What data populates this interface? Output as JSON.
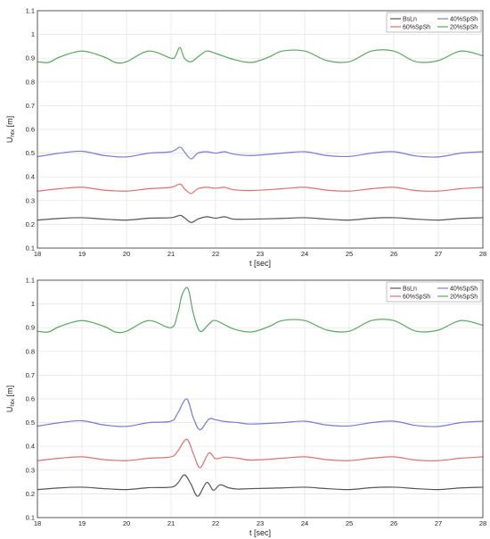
{
  "chart_data": [
    {
      "type": "line",
      "title": "",
      "xlabel": "t [sec]",
      "ylabel": "U_htx [m]",
      "ylabel_main": "U",
      "ylabel_sub": "htx",
      "ylabel_unit": " [m]",
      "xlim": [
        18,
        28
      ],
      "ylim": [
        0.1,
        1.1
      ],
      "xticks": [
        "18",
        "19",
        "20",
        "21",
        "22",
        "23",
        "24",
        "25",
        "26",
        "27",
        "28"
      ],
      "yticks": [
        "0.1",
        "0.2",
        "0.3",
        "0.4",
        "0.5",
        "0.6",
        "0.7",
        "0.8",
        "0.9",
        "1",
        "1.1"
      ],
      "grid": true,
      "legend_position": "top-right",
      "series": [
        {
          "name": "BsLn",
          "color": "#555555",
          "x": [
            18,
            18.5,
            19,
            19.5,
            20,
            20.5,
            21,
            21.2,
            21.3,
            21.45,
            21.6,
            21.8,
            22.0,
            22.2,
            22.4,
            22.8,
            23.5,
            24,
            24.5,
            25,
            25.5,
            26,
            26.5,
            27,
            27.5,
            28
          ],
          "values": [
            0.218,
            0.225,
            0.228,
            0.222,
            0.218,
            0.226,
            0.228,
            0.238,
            0.228,
            0.208,
            0.222,
            0.232,
            0.226,
            0.232,
            0.222,
            0.222,
            0.225,
            0.228,
            0.222,
            0.218,
            0.226,
            0.228,
            0.222,
            0.218,
            0.225,
            0.228
          ]
        },
        {
          "name": "40%SpSh",
          "color": "#7a7ad8",
          "x": [
            18,
            18.5,
            19,
            19.5,
            20,
            20.5,
            21,
            21.2,
            21.3,
            21.45,
            21.6,
            21.8,
            22.0,
            22.2,
            22.4,
            22.8,
            23.5,
            24,
            24.5,
            25,
            25.5,
            26,
            26.5,
            27,
            27.5,
            28
          ],
          "values": [
            0.485,
            0.5,
            0.508,
            0.49,
            0.484,
            0.5,
            0.506,
            0.525,
            0.505,
            0.476,
            0.5,
            0.506,
            0.5,
            0.506,
            0.496,
            0.49,
            0.5,
            0.506,
            0.49,
            0.486,
            0.5,
            0.506,
            0.488,
            0.484,
            0.5,
            0.506
          ]
        },
        {
          "name": "60%SpSh",
          "color": "#e07070",
          "x": [
            18,
            18.5,
            19,
            19.5,
            20,
            20.5,
            21,
            21.2,
            21.3,
            21.45,
            21.6,
            21.8,
            22.0,
            22.2,
            22.4,
            22.8,
            23.5,
            24,
            24.5,
            25,
            25.5,
            26,
            26.5,
            27,
            27.5,
            28
          ],
          "values": [
            0.34,
            0.35,
            0.356,
            0.344,
            0.34,
            0.35,
            0.356,
            0.37,
            0.35,
            0.33,
            0.35,
            0.356,
            0.352,
            0.356,
            0.346,
            0.342,
            0.35,
            0.356,
            0.344,
            0.34,
            0.35,
            0.356,
            0.342,
            0.34,
            0.35,
            0.356
          ]
        },
        {
          "name": "20%SpSh",
          "color": "#5aa860",
          "x": [
            18,
            18.25,
            18.5,
            19,
            19.5,
            19.75,
            20,
            20.5,
            21,
            21.1,
            21.2,
            21.3,
            21.45,
            21.6,
            21.8,
            22,
            22.4,
            22.8,
            23.2,
            23.5,
            24,
            24.5,
            25,
            25.5,
            26,
            26.5,
            27,
            27.5,
            28
          ],
          "values": [
            0.885,
            0.882,
            0.905,
            0.93,
            0.905,
            0.882,
            0.885,
            0.93,
            0.9,
            0.91,
            0.945,
            0.9,
            0.885,
            0.905,
            0.93,
            0.92,
            0.895,
            0.882,
            0.905,
            0.93,
            0.93,
            0.89,
            0.885,
            0.93,
            0.93,
            0.885,
            0.89,
            0.93,
            0.91
          ]
        }
      ]
    },
    {
      "type": "line",
      "title": "",
      "xlabel": "t [sec]",
      "ylabel": "U_htx [m]",
      "ylabel_main": "U",
      "ylabel_sub": "htx",
      "ylabel_unit": " [m]",
      "xlim": [
        18,
        28
      ],
      "ylim": [
        0.1,
        1.1
      ],
      "xticks": [
        "18",
        "19",
        "20",
        "21",
        "22",
        "23",
        "24",
        "25",
        "26",
        "27",
        "28"
      ],
      "yticks": [
        "0.1",
        "0.2",
        "0.3",
        "0.4",
        "0.5",
        "0.6",
        "0.7",
        "0.8",
        "0.9",
        "1",
        "1.1"
      ],
      "grid": true,
      "legend_position": "top-right",
      "series": [
        {
          "name": "BsLn",
          "color": "#555555",
          "x": [
            18,
            18.5,
            19,
            19.5,
            20,
            20.5,
            21,
            21.15,
            21.3,
            21.45,
            21.6,
            21.8,
            21.95,
            22.1,
            22.3,
            22.5,
            22.8,
            23.5,
            24,
            24.5,
            25,
            25.5,
            26,
            26.5,
            27,
            27.5,
            28
          ],
          "values": [
            0.218,
            0.225,
            0.228,
            0.222,
            0.218,
            0.226,
            0.228,
            0.245,
            0.28,
            0.24,
            0.19,
            0.248,
            0.215,
            0.238,
            0.225,
            0.22,
            0.222,
            0.225,
            0.228,
            0.222,
            0.218,
            0.226,
            0.228,
            0.222,
            0.218,
            0.225,
            0.228
          ]
        },
        {
          "name": "40%SpSh",
          "color": "#7a7ad8",
          "x": [
            18,
            18.5,
            19,
            19.5,
            20,
            20.5,
            21,
            21.15,
            21.35,
            21.5,
            21.65,
            21.85,
            22.0,
            22.2,
            22.5,
            22.8,
            23.5,
            24,
            24.5,
            25,
            25.5,
            26,
            26.5,
            27,
            27.5,
            28
          ],
          "values": [
            0.485,
            0.5,
            0.508,
            0.49,
            0.484,
            0.5,
            0.506,
            0.54,
            0.6,
            0.52,
            0.47,
            0.515,
            0.512,
            0.505,
            0.5,
            0.494,
            0.5,
            0.506,
            0.49,
            0.486,
            0.5,
            0.506,
            0.488,
            0.484,
            0.5,
            0.506
          ]
        },
        {
          "name": "60%SpSh",
          "color": "#e07070",
          "x": [
            18,
            18.5,
            19,
            19.5,
            20,
            20.5,
            21,
            21.15,
            21.35,
            21.5,
            21.65,
            21.85,
            22.0,
            22.2,
            22.5,
            22.8,
            23.5,
            24,
            24.5,
            25,
            25.5,
            26,
            26.5,
            27,
            27.5,
            28
          ],
          "values": [
            0.34,
            0.35,
            0.356,
            0.344,
            0.34,
            0.35,
            0.356,
            0.38,
            0.43,
            0.37,
            0.31,
            0.372,
            0.348,
            0.355,
            0.35,
            0.342,
            0.35,
            0.356,
            0.344,
            0.34,
            0.35,
            0.356,
            0.342,
            0.34,
            0.35,
            0.356
          ]
        },
        {
          "name": "20%SpSh",
          "color": "#5aa860",
          "x": [
            18,
            18.25,
            18.5,
            19,
            19.5,
            19.75,
            20,
            20.5,
            21,
            21.15,
            21.25,
            21.38,
            21.5,
            21.65,
            21.85,
            22,
            22.4,
            22.8,
            23.2,
            23.5,
            24,
            24.5,
            25,
            25.5,
            26,
            26.5,
            27,
            27.5,
            28
          ],
          "values": [
            0.885,
            0.882,
            0.905,
            0.93,
            0.905,
            0.882,
            0.885,
            0.93,
            0.9,
            0.96,
            1.04,
            1.065,
            0.96,
            0.885,
            0.915,
            0.93,
            0.895,
            0.882,
            0.905,
            0.93,
            0.93,
            0.89,
            0.885,
            0.93,
            0.93,
            0.885,
            0.89,
            0.93,
            0.91
          ]
        }
      ]
    }
  ]
}
